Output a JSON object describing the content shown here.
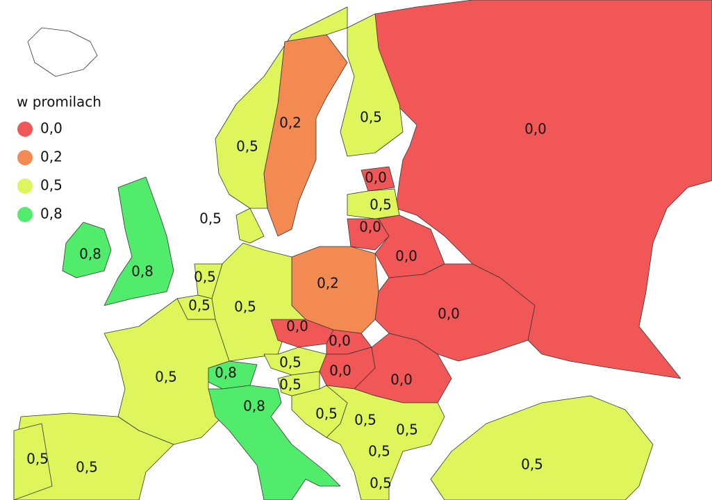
{
  "legend": {
    "title": "w promilach",
    "items": [
      {
        "label": "0,0",
        "color": "#f25757"
      },
      {
        "label": "0,2",
        "color": "#f28a52"
      },
      {
        "label": "0,5",
        "color": "#def55c"
      },
      {
        "label": "0,8",
        "color": "#52ec6c"
      }
    ]
  },
  "regions": [
    {
      "label": "0,0"
    },
    {
      "label": "0,5"
    },
    {
      "label": "0,2"
    },
    {
      "label": "0,5"
    },
    {
      "label": "0,0"
    },
    {
      "label": "0,5"
    },
    {
      "label": "0,0"
    },
    {
      "label": "0,0"
    },
    {
      "label": "0,0"
    },
    {
      "label": "0,2"
    },
    {
      "label": "0,5"
    },
    {
      "label": "0,5"
    },
    {
      "label": "0,5"
    },
    {
      "label": "0,0"
    },
    {
      "label": "0,0"
    },
    {
      "label": "0,5"
    },
    {
      "label": "0,8"
    },
    {
      "label": "0,0"
    },
    {
      "label": "0,0"
    },
    {
      "label": "0,5"
    },
    {
      "label": "0,5"
    },
    {
      "label": "0,5"
    },
    {
      "label": "0,5"
    },
    {
      "label": "0,8"
    },
    {
      "label": "0,5"
    },
    {
      "label": "0,5"
    },
    {
      "label": "0,8"
    },
    {
      "label": "0,8"
    },
    {
      "label": "0,5"
    },
    {
      "label": "0,5"
    },
    {
      "label": "0,5"
    },
    {
      "label": "0,5"
    },
    {
      "label": "0,5"
    }
  ]
}
